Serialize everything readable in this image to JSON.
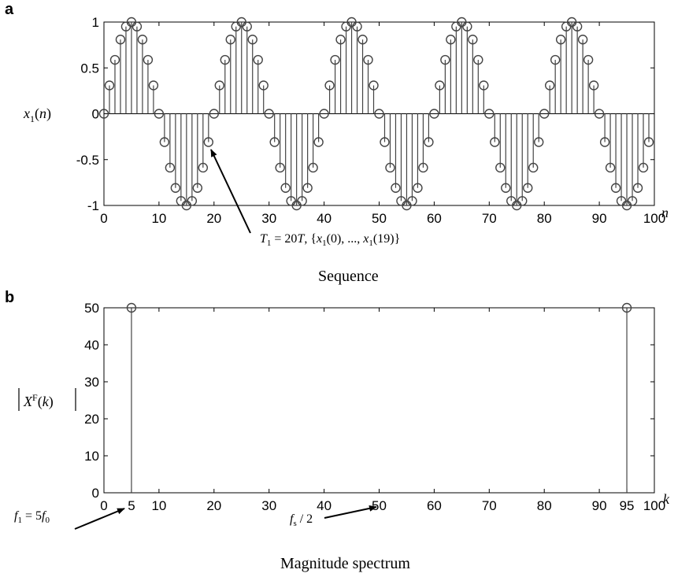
{
  "panels": {
    "a": {
      "letter": "a",
      "ylabel": "x1(n)",
      "xlabel": "n",
      "caption": "Sequence",
      "annotation": "T1 = 20T, {x1(0), ..., x1(19)}"
    },
    "b": {
      "letter": "b",
      "ylabel": "|XF(k)|",
      "xlabel": "k",
      "caption": "Magnitude spectrum",
      "annotation_left": "f1 = 5f0",
      "annotation_right": "fs / 2"
    }
  },
  "chart_data": [
    {
      "type": "stem",
      "title": "Sequence",
      "xlabel": "n",
      "ylabel": "x1(n)",
      "xlim": [
        0,
        100
      ],
      "ylim": [
        -1,
        1
      ],
      "xticks": [
        0,
        10,
        20,
        30,
        40,
        50,
        60,
        70,
        80,
        90,
        100
      ],
      "yticks": [
        -1,
        -0.5,
        0,
        0.5,
        1
      ],
      "ytick_labels": [
        "-1",
        "-0.5",
        "0",
        "0.5",
        "1"
      ],
      "function": "sin(2*pi*n/20)",
      "n_range": [
        0,
        99
      ],
      "period": 20,
      "annotation": {
        "text": "T1 = 20T, {x1(0), ..., x1(19)}",
        "points_to_n": 19
      }
    },
    {
      "type": "stem",
      "title": "Magnitude spectrum",
      "xlabel": "k",
      "ylabel": "|XF(k)|",
      "xlim": [
        0,
        100
      ],
      "ylim": [
        0,
        50
      ],
      "xticks": [
        0,
        5,
        10,
        20,
        30,
        40,
        50,
        60,
        70,
        80,
        90,
        95,
        100
      ],
      "yticks": [
        0,
        10,
        20,
        30,
        40,
        50
      ],
      "points": [
        {
          "k": 5,
          "value": 50
        },
        {
          "k": 95,
          "value": 50
        }
      ],
      "annotations": [
        {
          "text": "f1 = 5f0",
          "points_to_k": 5
        },
        {
          "text": "fs / 2",
          "points_to_k": 50
        }
      ]
    }
  ]
}
